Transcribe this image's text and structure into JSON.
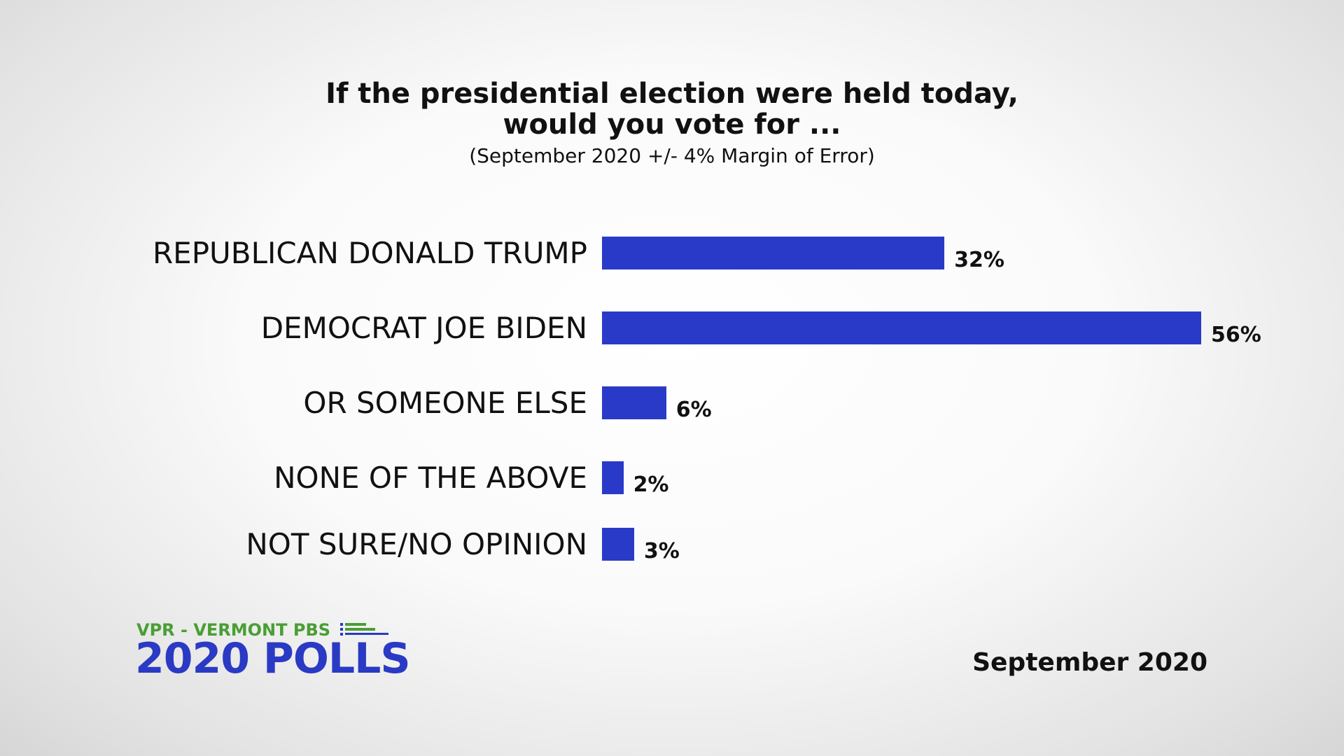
{
  "chart_data": {
    "type": "bar",
    "orientation": "horizontal",
    "title_line1": "If the presidential election were held today,",
    "title_line2": "would you vote for ...",
    "subtitle": "(September 2020 +/- 4% Margin of Error)",
    "categories": [
      "REPUBLICAN DONALD TRUMP",
      "DEMOCRAT JOE BIDEN",
      "OR SOMEONE ELSE",
      "NONE OF THE ABOVE",
      "NOT SURE/NO OPINION"
    ],
    "values": [
      32,
      56,
      6,
      2,
      3
    ],
    "value_labels": [
      "32%",
      "56%",
      "6%",
      "2%",
      "3%"
    ],
    "xlim": [
      0,
      56
    ],
    "grid": false,
    "bar_color": "#2a3ac8"
  },
  "branding": {
    "line1": "VPR - VERMONT PBS",
    "line2": "2020 POLLS",
    "green": "#4a9e34",
    "blue": "#2a3ac4"
  },
  "date": "September 2020"
}
